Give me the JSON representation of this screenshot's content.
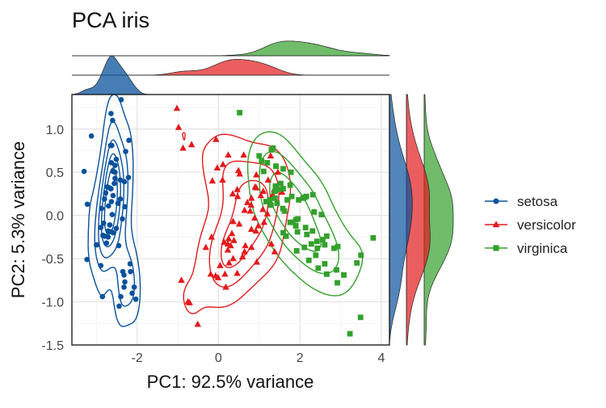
{
  "chart_data": {
    "type": "scatter",
    "title": "PCA iris",
    "xlabel": "PC1: 92.5% variance",
    "ylabel": "PC2: 5.3% variance",
    "xlim": [
      -3.6,
      4.2
    ],
    "ylim": [
      -1.5,
      1.4
    ],
    "x_ticks": [
      -2,
      0,
      2,
      4
    ],
    "x_tick_labels": [
      "-2",
      "0",
      "2",
      "4"
    ],
    "y_ticks": [
      1.0,
      0.5,
      0.0,
      -0.5,
      -1.0,
      -1.5
    ],
    "y_tick_labels": [
      "1.0",
      "0.5",
      "0.0",
      "-0.5",
      "-1.0",
      "-1.5"
    ],
    "grid": true,
    "legend_position": "right",
    "marginal_plots": "density",
    "contours": true,
    "series": [
      {
        "name": "setosa",
        "color": "#08519c",
        "marker": "circle",
        "points": [
          [
            -2.68,
            0.32
          ],
          [
            -2.71,
            -0.18
          ],
          [
            -2.89,
            -0.14
          ],
          [
            -2.75,
            -0.32
          ],
          [
            -2.73,
            0.33
          ],
          [
            -2.28,
            0.74
          ],
          [
            -2.82,
            -0.09
          ],
          [
            -2.63,
            0.16
          ],
          [
            -2.89,
            -0.58
          ],
          [
            -2.67,
            -0.11
          ],
          [
            -2.51,
            0.65
          ],
          [
            -2.61,
            0.01
          ],
          [
            -2.79,
            -0.24
          ],
          [
            -3.23,
            -0.51
          ],
          [
            -2.64,
            1.18
          ],
          [
            -2.39,
            1.34
          ],
          [
            -2.62,
            0.81
          ],
          [
            -2.65,
            0.31
          ],
          [
            -2.2,
            0.87
          ],
          [
            -2.59,
            0.51
          ],
          [
            -2.31,
            0.39
          ],
          [
            -2.54,
            0.43
          ],
          [
            -3.22,
            0.13
          ],
          [
            -2.3,
            0.1
          ],
          [
            -2.36,
            -0.04
          ],
          [
            -2.51,
            -0.15
          ],
          [
            -2.47,
            0.14
          ],
          [
            -2.56,
            0.37
          ],
          [
            -2.64,
            0.31
          ],
          [
            -2.63,
            -0.19
          ],
          [
            -2.59,
            -0.2
          ],
          [
            -2.41,
            0.41
          ],
          [
            -2.65,
            0.81
          ],
          [
            -2.6,
            1.1
          ],
          [
            -2.67,
            -0.11
          ],
          [
            -2.87,
            0.08
          ],
          [
            -2.63,
            0.61
          ],
          [
            -2.8,
            0.19
          ],
          [
            -2.98,
            -0.34
          ],
          [
            -2.59,
            0.23
          ],
          [
            -2.77,
            0.26
          ],
          [
            -2.85,
            -0.94
          ],
          [
            -3.0,
            -0.34
          ],
          [
            -2.41,
            0.19
          ],
          [
            -2.21,
            0.44
          ],
          [
            -2.71,
            -0.25
          ],
          [
            -2.54,
            0.5
          ],
          [
            -2.84,
            -0.23
          ],
          [
            -2.54,
            0.58
          ],
          [
            -2.7,
            0.11
          ],
          [
            -3.3,
            0.51
          ],
          [
            -2.44,
            -1.05
          ],
          [
            -2.16,
            -0.65
          ],
          [
            -3.12,
            0.92
          ],
          [
            -2.32,
            -0.83
          ],
          [
            -2.35,
            -0.65
          ],
          [
            -2.4,
            -0.94
          ],
          [
            -2.32,
            -0.69
          ],
          [
            -2.45,
            -0.35
          ],
          [
            -2.12,
            -0.9
          ],
          [
            -2.07,
            -0.83
          ],
          [
            -2.03,
            -0.97
          ],
          [
            -2.17,
            -0.56
          ],
          [
            -2.3,
            -0.77
          ]
        ]
      },
      {
        "name": "versicolor",
        "color": "#e31a1c",
        "marker": "triangle",
        "points": [
          [
            1.28,
            0.69
          ],
          [
            0.93,
            0.32
          ],
          [
            1.46,
            0.5
          ],
          [
            0.18,
            -0.83
          ],
          [
            1.09,
            0.07
          ],
          [
            0.64,
            -0.42
          ],
          [
            1.1,
            0.28
          ],
          [
            -0.75,
            -1.0
          ],
          [
            1.04,
            0.23
          ],
          [
            -0.01,
            -0.72
          ],
          [
            -0.51,
            -1.26
          ],
          [
            0.51,
            -0.1
          ],
          [
            0.26,
            -0.55
          ],
          [
            0.98,
            -0.12
          ],
          [
            -0.17,
            -0.25
          ],
          [
            0.93,
            0.47
          ],
          [
            0.66,
            -0.35
          ],
          [
            0.23,
            -0.33
          ],
          [
            0.94,
            -0.54
          ],
          [
            0.04,
            -0.58
          ],
          [
            1.12,
            -0.08
          ],
          [
            0.36,
            -0.07
          ],
          [
            1.3,
            -0.33
          ],
          [
            0.92,
            -0.18
          ],
          [
            0.71,
            0.15
          ],
          [
            0.9,
            0.33
          ],
          [
            1.33,
            0.24
          ],
          [
            1.56,
            0.27
          ],
          [
            0.81,
            -0.16
          ],
          [
            -0.31,
            -0.37
          ],
          [
            -0.07,
            -0.7
          ],
          [
            -0.19,
            -0.68
          ],
          [
            0.14,
            -0.31
          ],
          [
            1.38,
            -0.42
          ],
          [
            0.59,
            -0.48
          ],
          [
            0.81,
            0.2
          ],
          [
            1.22,
            0.41
          ],
          [
            0.81,
            -0.37
          ],
          [
            0.25,
            -0.27
          ],
          [
            0.16,
            -0.68
          ],
          [
            0.46,
            -0.67
          ],
          [
            0.89,
            -0.03
          ],
          [
            0.23,
            -0.4
          ],
          [
            -0.71,
            -1.01
          ],
          [
            0.36,
            -0.5
          ],
          [
            0.33,
            -0.21
          ],
          [
            0.38,
            -0.29
          ],
          [
            0.64,
            0.06
          ],
          [
            -0.91,
            -0.75
          ],
          [
            0.3,
            -0.35
          ],
          [
            -0.66,
            0.82
          ],
          [
            -0.98,
            1.02
          ],
          [
            -0.87,
            0.78
          ],
          [
            -1.02,
            1.24
          ],
          [
            -0.15,
            0.4
          ],
          [
            -0.03,
            0.55
          ],
          [
            0.62,
            0.7
          ],
          [
            0.24,
            0.7
          ],
          [
            0.1,
            0.41
          ],
          [
            0.46,
            0.3
          ],
          [
            0.35,
            0.25
          ],
          [
            0.49,
            0.52
          ],
          [
            -0.06,
            0.88
          ],
          [
            0.11,
            0.59
          ],
          [
            0.8,
            0.12
          ],
          [
            1.37,
            0.3
          ],
          [
            1.2,
            0.02
          ],
          [
            0.47,
            0.22
          ],
          [
            0.78,
            0.05
          ],
          [
            0.52,
            0.48
          ]
        ]
      },
      {
        "name": "virginica",
        "color": "#33a02c",
        "marker": "square",
        "points": [
          [
            2.53,
            0.01
          ],
          [
            1.41,
            0.57
          ],
          [
            2.61,
            -0.34
          ],
          [
            1.97,
            0.18
          ],
          [
            2.35,
            0.04
          ],
          [
            3.4,
            -0.55
          ],
          [
            0.52,
            1.19
          ],
          [
            2.93,
            -0.36
          ],
          [
            2.32,
            0.24
          ],
          [
            2.92,
            -0.78
          ],
          [
            1.66,
            -0.24
          ],
          [
            1.8,
            0.22
          ],
          [
            2.17,
            -0.22
          ],
          [
            1.34,
            0.78
          ],
          [
            1.59,
            0.54
          ],
          [
            1.9,
            -0.12
          ],
          [
            1.95,
            -0.04
          ],
          [
            3.49,
            -1.18
          ],
          [
            3.8,
            -0.26
          ],
          [
            1.3,
            0.76
          ],
          [
            2.43,
            -0.38
          ],
          [
            1.2,
            0.61
          ],
          [
            3.5,
            -0.46
          ],
          [
            1.39,
            0.2
          ],
          [
            2.28,
            -0.33
          ],
          [
            2.61,
            -0.56
          ],
          [
            1.26,
            0.18
          ],
          [
            1.29,
            0.12
          ],
          [
            2.12,
            0.21
          ],
          [
            2.39,
            -0.46
          ],
          [
            2.84,
            -0.38
          ],
          [
            3.23,
            -1.37
          ],
          [
            2.16,
            0.22
          ],
          [
            1.44,
            0.14
          ],
          [
            1.78,
            0.5
          ],
          [
            3.08,
            -0.69
          ],
          [
            2.14,
            -0.14
          ],
          [
            1.9,
            -0.05
          ],
          [
            1.17,
            0.16
          ],
          [
            2.11,
            -0.37
          ],
          [
            2.31,
            -0.18
          ],
          [
            1.92,
            -0.41
          ],
          [
            1.41,
            0.57
          ],
          [
            2.56,
            -0.28
          ],
          [
            2.42,
            -0.3
          ],
          [
            1.94,
            -0.19
          ],
          [
            1.53,
            0.37
          ],
          [
            1.76,
            -0.08
          ],
          [
            1.9,
            -0.12
          ],
          [
            1.39,
            0.28
          ],
          [
            1.0,
            0.69
          ],
          [
            1.06,
            0.63
          ],
          [
            1.59,
            0.31
          ],
          [
            1.76,
            0.35
          ],
          [
            2.08,
            0.2
          ],
          [
            1.11,
            0.51
          ],
          [
            2.45,
            -0.61
          ],
          [
            2.66,
            -0.68
          ],
          [
            1.59,
            -0.2
          ],
          [
            1.47,
            0.3
          ],
          [
            2.9,
            -0.63
          ],
          [
            1.69,
            0.18
          ],
          [
            1.58,
            0.08
          ],
          [
            2.22,
            -0.52
          ],
          [
            1.82,
            -0.08
          ],
          [
            2.66,
            -0.24
          ],
          [
            1.62,
            0.05
          ],
          [
            1.4,
            0.34
          ]
        ]
      }
    ]
  }
}
